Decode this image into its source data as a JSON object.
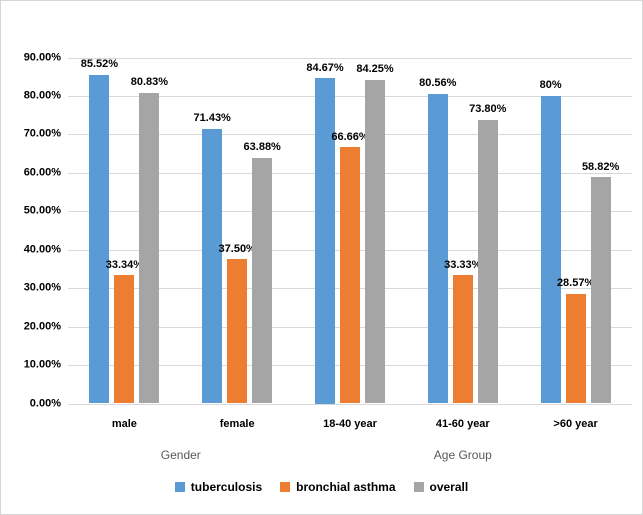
{
  "chart_data": {
    "type": "bar",
    "title": "",
    "categories": [
      "male",
      "female",
      "18-40 year",
      "41-60 year",
      ">60 year"
    ],
    "axis_group_labels": [
      {
        "label": "Gender",
        "span": [
          0,
          1
        ]
      },
      {
        "label": "Age Group",
        "span": [
          2,
          4
        ]
      }
    ],
    "series": [
      {
        "name": "tuberculosis",
        "color": "#5B9BD5",
        "values": [
          85.52,
          71.43,
          84.67,
          80.56,
          80
        ],
        "data_labels": [
          "85.52%",
          "71.43%",
          "84.67%",
          "80.56%",
          "80%"
        ]
      },
      {
        "name": "bronchial asthma",
        "color": "#ED7D31",
        "values": [
          33.34,
          37.5,
          66.66,
          33.33,
          28.57
        ],
        "data_labels": [
          "33.34%",
          "37.50%",
          "66.66%",
          "33.33%",
          "28.57%"
        ]
      },
      {
        "name": "overall",
        "color": "#A5A5A5",
        "values": [
          80.83,
          63.88,
          84.25,
          73.8,
          58.82
        ],
        "data_labels": [
          "80.83%",
          "63.88%",
          "84.25%",
          "73.80%",
          "58.82%"
        ]
      }
    ],
    "y_axis": {
      "min": 0,
      "max": 90,
      "ticks": [
        {
          "value": 90,
          "label": "90.00%"
        },
        {
          "value": 80,
          "label": "80.00%"
        },
        {
          "value": 70,
          "label": "70.00%"
        },
        {
          "value": 60,
          "label": "60.00%"
        },
        {
          "value": 50,
          "label": "50.00%"
        },
        {
          "value": 40,
          "label": "40.00%"
        },
        {
          "value": 30,
          "label": "30.00%"
        },
        {
          "value": 20,
          "label": "20.00%"
        },
        {
          "value": 10,
          "label": "10.00%"
        },
        {
          "value": 0,
          "label": "0.00%"
        }
      ]
    },
    "legend": {
      "position": "bottom",
      "entries": [
        "tuberculosis",
        "bronchial asthma",
        "overall"
      ]
    },
    "grid": true,
    "colors": {
      "gridline": "#D9D9D9",
      "axis_line": "#D9D9D9",
      "tick_label": "#000000",
      "category_label": "#000000",
      "group_label": "#595959",
      "data_label": "#000000",
      "background": "#FFFFFF",
      "border": "#D6D6D6"
    }
  }
}
